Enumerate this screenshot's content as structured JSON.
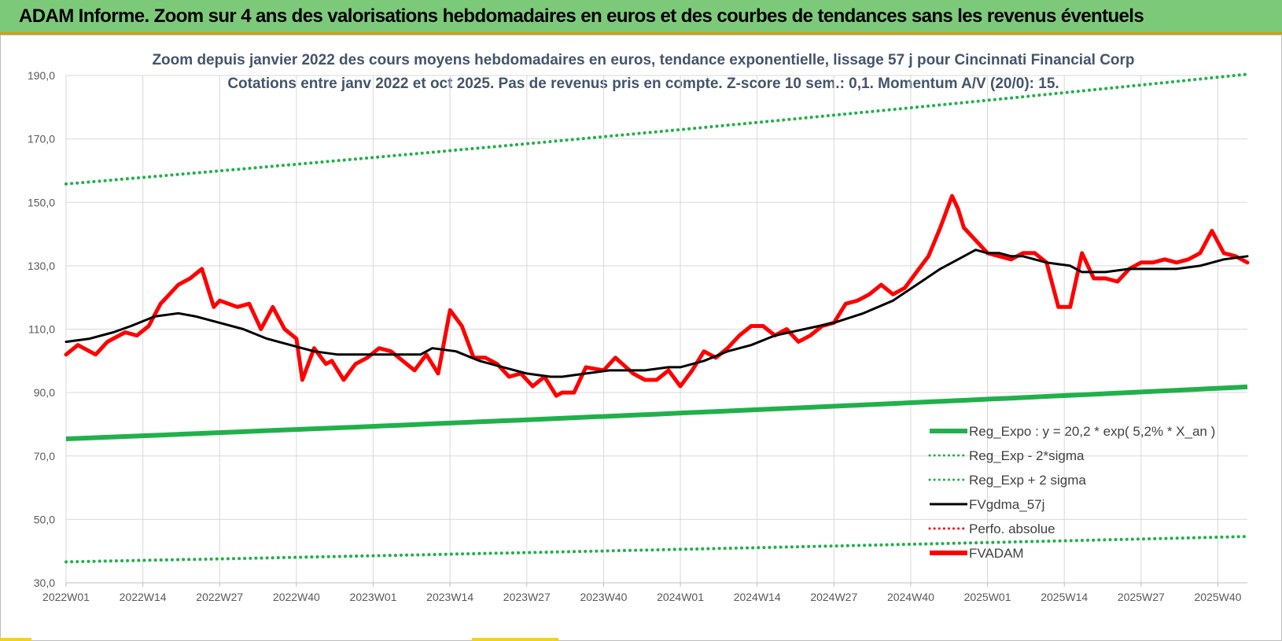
{
  "page_title": "ADAM Informe. Zoom sur 4 ans des valorisations hebdomadaires en euros et des courbes de tendances sans les revenus éventuels",
  "colors": {
    "banner": "#7dc97a",
    "reg_expo": "#21b04b",
    "fvgdma": "#000000",
    "fvadam": "#ff0000",
    "perfo": "#ff0000",
    "title_text": "#44546a"
  },
  "chart_data": {
    "type": "line",
    "title": "Zoom depuis janvier 2022 des cours moyens hebdomadaires en euros, tendance exponentielle, lissage 57 j pour Cincinnati Financial Corp",
    "subtitle": "Cotations entre janv 2022 et oct 2025. Pas de revenus pris en compte. Z-score 10 sem.: 0,1. Momentum A/V (20/0): 15.",
    "x_tick_labels": [
      "2022W01",
      "2022W14",
      "2022W27",
      "2022W40",
      "2023W01",
      "2023W14",
      "2023W27",
      "2023W40",
      "2024W01",
      "2024W14",
      "2024W27",
      "2024W40",
      "2025W01",
      "2025W14",
      "2025W27",
      "2025W40"
    ],
    "x_tick_index": [
      0,
      13,
      26,
      39,
      52,
      65,
      78,
      91,
      104,
      117,
      130,
      143,
      156,
      169,
      182,
      195
    ],
    "x_count": 200,
    "ylim": [
      30,
      190
    ],
    "y_ticks": [
      "30,0",
      "50,0",
      "70,0",
      "90,0",
      "110,0",
      "130,0",
      "150,0",
      "170,0",
      "190,0"
    ],
    "grid": true,
    "legend_position": "bottom-right",
    "legend": [
      {
        "name": "Reg_Expo : y = 20,2 * exp( 5,2% * X_an )",
        "series": "reg_expo",
        "style": "solid-thick",
        "color": "#21b04b"
      },
      {
        "name": "Reg_Exp - 2*sigma",
        "series": "reg_minus",
        "style": "dotted",
        "color": "#21b04b"
      },
      {
        "name": "Reg_Exp + 2 sigma",
        "series": "reg_plus",
        "style": "dotted",
        "color": "#21b04b"
      },
      {
        "name": "FVgdma_57j",
        "series": "fvgdma",
        "style": "solid",
        "color": "#000000"
      },
      {
        "name": "Perfo. absolue",
        "series": "perfo",
        "style": "dotted",
        "color": "#ff0000"
      },
      {
        "name": "FVADAM",
        "series": "fvadam",
        "style": "solid-thick",
        "color": "#ff0000"
      }
    ],
    "series": {
      "reg_expo": {
        "start": 75.4,
        "end": 91.8
      },
      "reg_minus": {
        "start": 36.6,
        "end": 44.6
      },
      "reg_plus": {
        "start": 155.8,
        "end": 190.4
      },
      "fvadam": {
        "x": [
          0,
          2,
          5,
          7,
          10,
          12,
          14,
          16,
          19,
          21,
          23,
          25,
          26,
          29,
          31,
          33,
          35,
          37,
          39,
          40,
          42,
          44,
          45,
          47,
          49,
          51,
          53,
          55,
          57,
          59,
          61,
          63,
          65,
          67,
          69,
          71,
          73,
          75,
          77,
          79,
          81,
          83,
          84,
          86,
          88,
          91,
          93,
          96,
          98,
          100,
          102,
          104,
          106,
          108,
          110,
          112,
          114,
          116,
          118,
          120,
          122,
          124,
          126,
          128,
          130,
          132,
          134,
          136,
          138,
          140,
          142,
          144,
          146,
          148,
          150,
          151,
          152,
          154,
          156,
          158,
          160,
          162,
          164,
          166,
          168,
          170,
          172,
          174,
          176,
          178,
          180,
          182,
          184,
          186,
          188,
          190,
          192,
          194,
          196,
          198,
          200
        ],
        "y": [
          102,
          105,
          102,
          106,
          109,
          108,
          111,
          118,
          124,
          126,
          129,
          117,
          119,
          117,
          118,
          110,
          117,
          110,
          107,
          94,
          104,
          99,
          100,
          94,
          99,
          101,
          104,
          103,
          100,
          97,
          102,
          96,
          116,
          111,
          101,
          101,
          99,
          95,
          96,
          92,
          95,
          89,
          90,
          90,
          98,
          97,
          101,
          96,
          94,
          94,
          97,
          92,
          97,
          103,
          101,
          104,
          108,
          111,
          111,
          108,
          110,
          106,
          108,
          111,
          112,
          118,
          119,
          121,
          124,
          121,
          123,
          128,
          133,
          142,
          152,
          148,
          142,
          138,
          134,
          133,
          132,
          134,
          134,
          131,
          117,
          117,
          134,
          126,
          126,
          125,
          129,
          131,
          131,
          132,
          131,
          132,
          134,
          141,
          134,
          133,
          131
        ]
      },
      "fvgdma": {
        "x": [
          0,
          4,
          8,
          11,
          15,
          19,
          22,
          26,
          30,
          34,
          38,
          42,
          46,
          50,
          55,
          60,
          62,
          66,
          70,
          74,
          78,
          82,
          84,
          88,
          92,
          96,
          98,
          102,
          104,
          108,
          112,
          116,
          120,
          125,
          130,
          135,
          140,
          144,
          148,
          152,
          154,
          156,
          158,
          160,
          162,
          164,
          166,
          170,
          172,
          176,
          180,
          184,
          188,
          192,
          196,
          200
        ],
        "y": [
          106,
          107,
          109,
          111,
          114,
          115,
          114,
          112,
          110,
          107,
          105,
          103,
          102,
          102,
          102,
          102,
          104,
          103,
          100,
          98,
          96,
          95,
          95,
          96,
          97,
          97,
          97,
          98,
          98,
          100,
          103,
          105,
          108,
          110,
          112,
          115,
          119,
          124,
          129,
          133,
          135,
          134,
          134,
          133,
          133,
          132,
          131,
          130,
          128,
          128,
          129,
          129,
          129,
          130,
          132,
          133
        ]
      }
    }
  }
}
